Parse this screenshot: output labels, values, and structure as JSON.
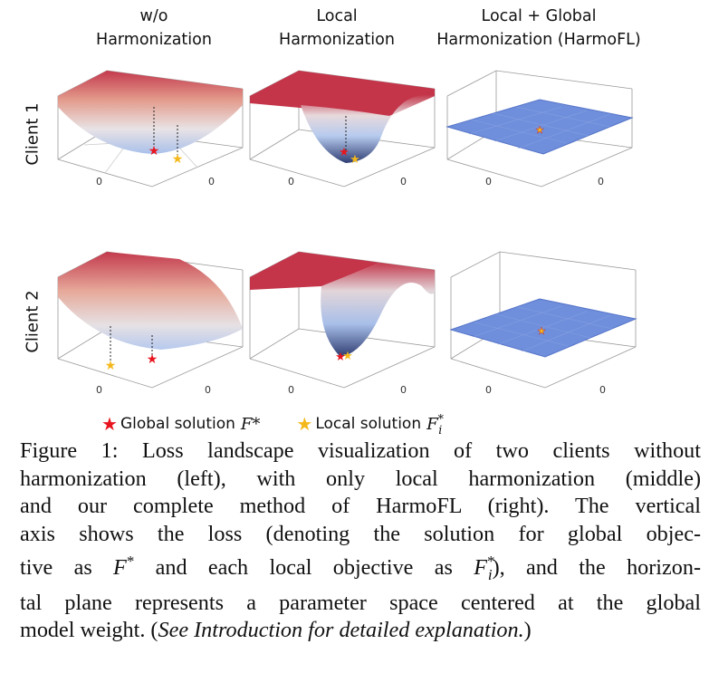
{
  "figure": {
    "columns": [
      {
        "title": "w/o\nHarmonization"
      },
      {
        "title": "Local\nHarmonization"
      },
      {
        "title": "Local + Global\nHarmonization (HarmoFL)"
      }
    ],
    "rows": [
      {
        "label": "Client 1"
      },
      {
        "label": "Client 2"
      }
    ],
    "axis_tick": "0",
    "legend": {
      "global": {
        "text": "Global solution",
        "symbol": "F*",
        "color": "#e8141e"
      },
      "local": {
        "text": "Local solution",
        "symbol": "F",
        "sub": "i",
        "sup": "*",
        "color": "#f4b81c"
      }
    },
    "colors": {
      "surface_high": "#c8344a",
      "surface_low": "#9db7e8",
      "flat_surface": "#6f8fdc"
    }
  },
  "caption": {
    "lines": [
      "Figure 1: Loss landscape visualization of two clients without",
      "harmonization (left), with only local harmonization (middle)",
      "and our complete method of HarmoFL (right). The vertical",
      "axis shows the loss (denoting the solution for global objec-",
      "tive as ",
      "and each local objective as ",
      "), and the horizon-",
      "tal plane represents a parameter space centered at the global",
      "model weight. (",
      "See Introduction for detailed explanation.",
      ")"
    ],
    "symbols": {
      "f_star": "F",
      "star": "*",
      "sub_i": "i"
    }
  }
}
